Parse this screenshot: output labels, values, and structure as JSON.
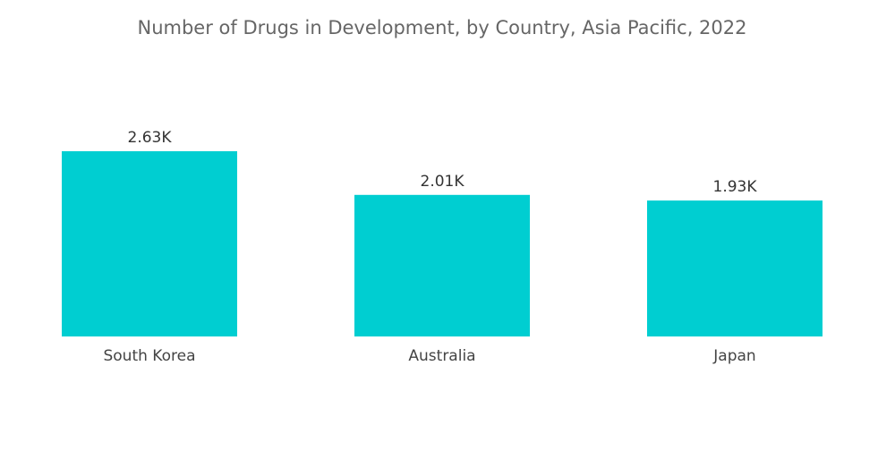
{
  "chart_data": {
    "type": "bar",
    "title": "Number of Drugs in Development, by Country, Asia Pacific, 2022",
    "categories": [
      "South Korea",
      "Australia",
      "Japan"
    ],
    "values": [
      2630,
      2010,
      1930
    ],
    "data_labels": [
      "2.63K",
      "2.01K",
      "1.93K"
    ],
    "xlabel": "",
    "ylabel": "",
    "ylim": [
      0,
      2630
    ],
    "grid": false,
    "legend": "none",
    "bar_color": "#00CED1"
  }
}
